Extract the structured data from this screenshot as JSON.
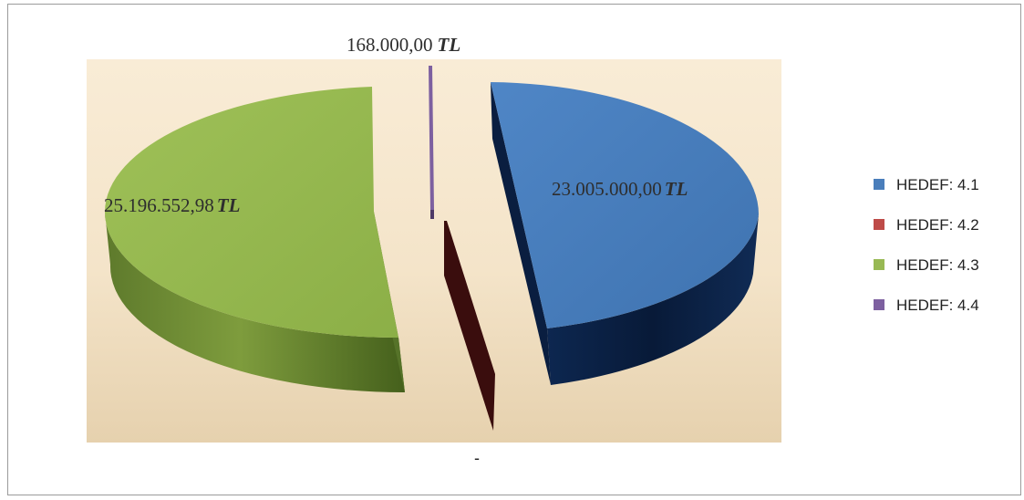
{
  "chart_data": {
    "type": "pie",
    "style": "3d-exploded",
    "legend_position": "right",
    "slices": [
      {
        "name": "HEDEF: 4.1",
        "value": 23005000.0,
        "label": "23.005.000,00",
        "unit": "TL",
        "color": "#4a7ebb"
      },
      {
        "name": "HEDEF: 4.2",
        "value": 0,
        "label": "-",
        "unit": "",
        "color": "#be4b48"
      },
      {
        "name": "HEDEF: 4.3",
        "value": 25196552.98,
        "label": "25.196.552,98",
        "unit": "TL",
        "color": "#98b954"
      },
      {
        "name": "HEDEF: 4.4",
        "value": 168000.0,
        "label": "168.000,00",
        "unit": "TL",
        "color": "#7d60a0"
      }
    ]
  }
}
